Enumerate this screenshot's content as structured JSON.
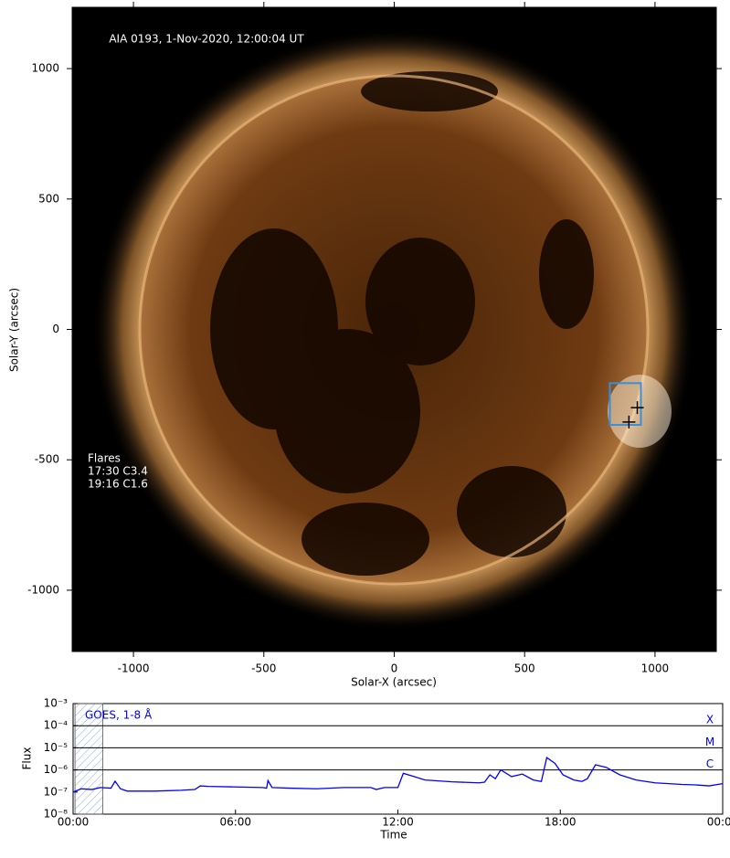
{
  "chart_data": [
    {
      "type": "image",
      "title": "AIA 0193, 1-Nov-2020, 12:00:04 UT",
      "x_label": "Solar-X (arcsec)",
      "y_label": "Solar-Y (arcsec)",
      "xlim": [
        -1235,
        1235
      ],
      "ylim": [
        -1235,
        1235
      ],
      "xticks": [
        -1000,
        -500,
        0,
        500,
        1000
      ],
      "yticks": [
        -1000,
        -500,
        0,
        500,
        1000
      ],
      "annotations": [
        "Flares",
        "17:30 C3.4",
        "19:16 C1.6"
      ],
      "box": {
        "color": "#3a8fd8",
        "x": [
          827,
          946
        ],
        "y": [
          -366,
          -206
        ]
      },
      "markers": {
        "color": "#000000",
        "x": [
          932,
          900
        ],
        "y": [
          -300,
          -355
        ]
      }
    },
    {
      "type": "line",
      "x_label": "Time",
      "y_label": "Flux",
      "log_y": true,
      "xlim": [
        0,
        24
      ],
      "ylim": [
        1e-08,
        0.001
      ],
      "xticks": [
        {
          "value": 0,
          "label": "00:00"
        },
        {
          "value": 6,
          "label": "06:00"
        },
        {
          "value": 12,
          "label": "12:00"
        },
        {
          "value": 18,
          "label": "18:00"
        },
        {
          "value": 24,
          "label": "00:00"
        }
      ],
      "yticks": [
        {
          "value": 1e-08,
          "label": "10⁻⁸"
        },
        {
          "value": 1e-07,
          "label": "10⁻⁷"
        },
        {
          "value": 1e-06,
          "label": "10⁻⁶"
        },
        {
          "value": 1e-05,
          "label": "10⁻⁵"
        },
        {
          "value": 0.0001,
          "label": "10⁻⁴"
        },
        {
          "value": 0.001,
          "label": "10⁻³"
        }
      ],
      "class_lines": [
        {
          "value": 0.0001,
          "label": "X"
        },
        {
          "value": 1e-05,
          "label": "M"
        },
        {
          "value": 1e-06,
          "label": "C"
        }
      ],
      "shaded": [
        0.07,
        1.1
      ],
      "series": [
        {
          "name": "GOES, 1-8 Å",
          "color": "#0000ff",
          "x": [
            0,
            0.3,
            0.7,
            1.0,
            1.4,
            1.55,
            1.75,
            2.0,
            3.0,
            4.0,
            4.5,
            4.7,
            5.0,
            6.0,
            7.0,
            7.15,
            7.2,
            7.35,
            8.0,
            9.0,
            10.0,
            11.0,
            11.2,
            11.5,
            12.0,
            12.2,
            12.6,
            13.0,
            14.0,
            15.0,
            15.2,
            15.4,
            15.6,
            15.8,
            16.2,
            16.6,
            17.0,
            17.3,
            17.5,
            17.8,
            18.1,
            18.5,
            18.8,
            19.0,
            19.3,
            19.7,
            20.2,
            20.8,
            21.5,
            22.0,
            22.5,
            23.0,
            23.5,
            24.0
          ],
          "values": [
            1e-07,
            1.4e-07,
            1.3e-07,
            1.6e-07,
            1.5e-07,
            3.1e-07,
            1.4e-07,
            1.1e-07,
            1.1e-07,
            1.2e-07,
            1.3e-07,
            1.9e-07,
            1.8e-07,
            1.7e-07,
            1.6e-07,
            1.5e-07,
            3.3e-07,
            1.6e-07,
            1.5e-07,
            1.4e-07,
            1.6e-07,
            1.6e-07,
            1.3e-07,
            1.6e-07,
            1.6e-07,
            7e-07,
            5e-07,
            3.5e-07,
            2.9e-07,
            2.6e-07,
            2.8e-07,
            6e-07,
            4e-07,
            1e-06,
            5e-07,
            6.5e-07,
            3.5e-07,
            3e-07,
            3.6e-06,
            2e-06,
            6e-07,
            3.5e-07,
            3e-07,
            4e-07,
            1.7e-06,
            1.3e-06,
            6e-07,
            3.5e-07,
            2.6e-07,
            2.4e-07,
            2.2e-07,
            2.1e-07,
            1.9e-07,
            2.4e-07
          ]
        }
      ]
    }
  ]
}
